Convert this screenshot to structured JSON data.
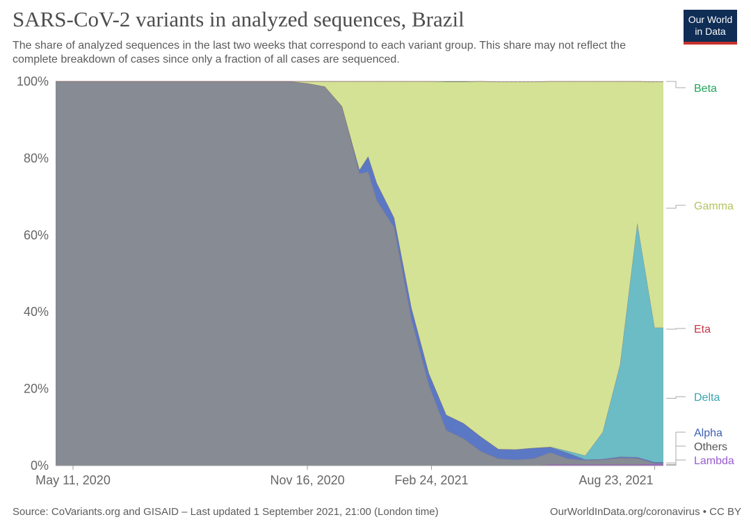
{
  "header": {
    "title": "SARS-CoV-2 variants in analyzed sequences, Brazil",
    "subtitle": "The share of analyzed sequences in the last two weeks that correspond to each variant group. This share may not reflect the complete breakdown of cases since only a fraction of all cases are sequenced.",
    "logo_line1": "Our World",
    "logo_line2": "in Data"
  },
  "footer": {
    "source": "Source: CoVariants.org and GISAID – Last updated 1 September 2021, 21:00 (London time)",
    "credit": "OurWorldInData.org/coronavirus • CC BY"
  },
  "chart_data": {
    "type": "area",
    "stacked": true,
    "title": "SARS-CoV-2 variants in analyzed sequences, Brazil",
    "xlabel": "",
    "ylabel": "",
    "ylim": [
      0,
      100
    ],
    "y_ticks": [
      "0%",
      "20%",
      "40%",
      "60%",
      "80%",
      "100%"
    ],
    "x_ticks": [
      "May 11, 2020",
      "Nov 16, 2020",
      "Feb 24, 2021",
      "Aug 23, 2021"
    ],
    "grid": true,
    "x": [
      "Apr 27, 2020",
      "May 11, 2020",
      "May 25, 2020",
      "Jun 8, 2020",
      "Jun 22, 2020",
      "Jul 6, 2020",
      "Jul 20, 2020",
      "Aug 3, 2020",
      "Aug 17, 2020",
      "Aug 31, 2020",
      "Sep 14, 2020",
      "Sep 28, 2020",
      "Oct 12, 2020",
      "Oct 26, 2020",
      "Nov 2, 2020",
      "Nov 16, 2020",
      "Nov 30, 2020",
      "Dec 14, 2020",
      "Dec 28, 2020",
      "Jan 4, 2021",
      "Jan 11, 2021",
      "Jan 25, 2021",
      "Feb 8, 2021",
      "Feb 22, 2021",
      "Mar 8, 2021",
      "Mar 22, 2021",
      "Apr 5, 2021",
      "Apr 19, 2021",
      "May 3, 2021",
      "May 17, 2021",
      "May 31, 2021",
      "Jun 14, 2021",
      "Jun 28, 2021",
      "Jul 12, 2021",
      "Jul 26, 2021",
      "Aug 9, 2021",
      "Aug 23, 2021",
      "Aug 30, 2021"
    ],
    "series": [
      {
        "name": "Lambda",
        "color": "#9a5ccf",
        "values": [
          0,
          0,
          0,
          0,
          0,
          0,
          0,
          0,
          0,
          0,
          0,
          0,
          0,
          0,
          0,
          0,
          0,
          0,
          0,
          0,
          0,
          0,
          0,
          0,
          0,
          0,
          0,
          0,
          0,
          0,
          0.3,
          0.3,
          0.3,
          0.3,
          0.3,
          0.3,
          0.4,
          0.4
        ]
      },
      {
        "name": "Others",
        "color": "#878b94",
        "values": [
          100,
          100,
          100,
          100,
          100,
          100,
          100,
          100,
          100,
          100,
          100,
          100,
          100,
          100,
          100,
          99.5,
          98.7,
          93.5,
          76,
          76.5,
          69,
          62,
          38,
          21,
          9.2,
          7,
          3.7,
          1.8,
          1.5,
          1.8,
          3.1,
          1.5,
          1.1,
          1.2,
          1.7,
          1.6,
          0.2,
          0.2
        ]
      },
      {
        "name": "Alpha",
        "color": "#5b78c4",
        "values": [
          0,
          0,
          0,
          0,
          0,
          0,
          0,
          0,
          0,
          0,
          0,
          0,
          0,
          0,
          0,
          0,
          0,
          0,
          1,
          4,
          4.5,
          2.5,
          3,
          3,
          4,
          4,
          3.8,
          2.5,
          2.7,
          2.8,
          1.4,
          1.5,
          0.2,
          0.2,
          0.3,
          0.3,
          0.3,
          0.3
        ]
      },
      {
        "name": "Delta",
        "color": "#6bbcc4",
        "values": [
          0,
          0,
          0,
          0,
          0,
          0,
          0,
          0,
          0,
          0,
          0,
          0,
          0,
          0,
          0,
          0,
          0,
          0,
          0,
          0,
          0,
          0,
          0,
          0,
          0,
          0,
          0,
          0,
          0,
          0,
          0.1,
          0.5,
          1,
          7,
          24,
          61,
          35,
          35
        ]
      },
      {
        "name": "Eta",
        "color": "#c5364a",
        "values": [
          0,
          0,
          0,
          0,
          0,
          0,
          0,
          0,
          0,
          0,
          0,
          0,
          0,
          0,
          0,
          0,
          0,
          0,
          0,
          0,
          0,
          0,
          0,
          0,
          0,
          0,
          0,
          0,
          0,
          0,
          0,
          0,
          0,
          0,
          0,
          0,
          0,
          0
        ]
      },
      {
        "name": "Gamma",
        "color": "#d4e295",
        "values": [
          0,
          0,
          0,
          0,
          0,
          0,
          0,
          0,
          0,
          0,
          0,
          0,
          0,
          0,
          0,
          0.5,
          1.3,
          6.5,
          23,
          19.5,
          26.5,
          35.5,
          59,
          76,
          86.7,
          88.9,
          92.5,
          95.6,
          95.7,
          95.3,
          95.1,
          96.2,
          97.4,
          91.3,
          73.7,
          36.8,
          64,
          64
        ]
      },
      {
        "name": "Beta",
        "color": "#23a55a",
        "values": [
          0,
          0,
          0,
          0,
          0,
          0,
          0,
          0,
          0,
          0,
          0,
          0,
          0,
          0,
          0,
          0,
          0,
          0,
          0,
          0,
          0,
          0,
          0,
          0,
          0.1,
          0.1,
          0,
          0,
          0,
          0,
          0,
          0,
          0,
          0,
          0,
          0,
          0,
          0
        ]
      }
    ],
    "legend": [
      {
        "name": "Beta",
        "color": "#23a55a",
        "anchor_value": 100
      },
      {
        "name": "Gamma",
        "color": "#b4c55f",
        "anchor_value": 67
      },
      {
        "name": "Eta",
        "color": "#c5364a",
        "anchor_value": 35.5
      },
      {
        "name": "Delta",
        "color": "#3aa5ae",
        "anchor_value": 17.5
      },
      {
        "name": "Alpha",
        "color": "#3b5fb1",
        "anchor_value": 0.7
      },
      {
        "name": "Others",
        "color": "#555555",
        "anchor_value": 0.3
      },
      {
        "name": "Lambda",
        "color": "#9a5ccf",
        "anchor_value": 0.1
      }
    ],
    "legend_position": "right"
  }
}
